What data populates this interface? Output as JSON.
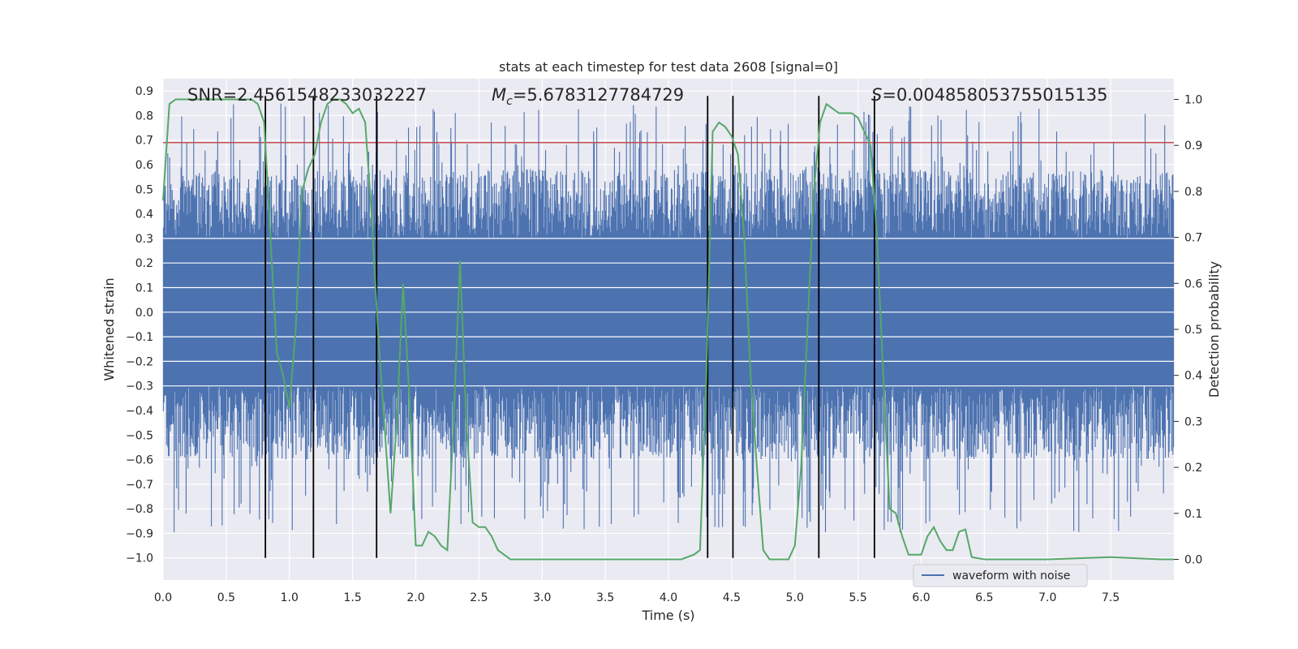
{
  "chart_data": {
    "type": "line",
    "title": "stats at each timestep for test data 2608 [signal=0]",
    "xlabel": "Time (s)",
    "ylabel": "Whitened strain",
    "y2label": "Detection probability",
    "xlim": [
      0.0,
      8.0
    ],
    "ylim": [
      -1.09,
      0.95
    ],
    "y2lim": [
      -0.045,
      1.045
    ],
    "x_ticks": [
      0.0,
      0.5,
      1.0,
      1.5,
      2.0,
      2.5,
      3.0,
      3.5,
      4.0,
      4.5,
      5.0,
      5.5,
      6.0,
      6.5,
      7.0,
      7.5
    ],
    "x_tick_labels": [
      "0.0",
      "0.5",
      "1.0",
      "1.5",
      "2.0",
      "2.5",
      "3.0",
      "3.5",
      "4.0",
      "4.5",
      "5.0",
      "5.5",
      "6.0",
      "6.5",
      "7.0",
      "7.5"
    ],
    "y_ticks": [
      0.9,
      0.8,
      0.7,
      0.6,
      0.5,
      0.4,
      0.3,
      0.2,
      0.1,
      0.0,
      -0.1,
      -0.2,
      -0.3,
      -0.4,
      -0.5,
      -0.6,
      -0.7,
      -0.8,
      -0.9,
      -1.0
    ],
    "y_tick_labels": [
      "0.9",
      "0.8",
      "0.7",
      "0.6",
      "0.5",
      "0.4",
      "0.3",
      "0.2",
      "0.1",
      "0.0",
      "−0.1",
      "−0.2",
      "−0.3",
      "−0.4",
      "−0.5",
      "−0.6",
      "−0.7",
      "−0.8",
      "−0.9",
      "−1.0"
    ],
    "y2_ticks": [
      1.0,
      0.9,
      0.8,
      0.7,
      0.6,
      0.5,
      0.4,
      0.3,
      0.2,
      0.1,
      0.0
    ],
    "y2_tick_labels": [
      "1.0",
      "0.9",
      "0.8",
      "0.7",
      "0.6",
      "0.5",
      "0.4",
      "0.3",
      "0.2",
      "0.1",
      "0.0"
    ],
    "grid": true,
    "legend": {
      "position": "lower-right",
      "entries": [
        "waveform with noise"
      ]
    },
    "annotations": [
      {
        "prefix": "SNR",
        "italic_symbol": "",
        "subscript": "",
        "value": "=2.4561548233032227"
      },
      {
        "prefix": "",
        "italic_symbol": "M",
        "subscript": "c",
        "value": "=5.6783127784729"
      },
      {
        "prefix": "",
        "italic_symbol": "S",
        "subscript": "",
        "value": "=0.004858053755015135"
      }
    ],
    "threshold": {
      "value": 0.69,
      "color": "#c44e52"
    },
    "vertical_markers": [
      0.81,
      1.19,
      1.69,
      4.31,
      4.51,
      5.19,
      5.63
    ],
    "vertical_marker_range": [
      -1.0,
      0.88
    ],
    "waveform": {
      "name": "waveform with noise",
      "color": "#4c72b0",
      "n_samples": 1600,
      "core_amplitude": 0.3,
      "peak_max": 0.85,
      "trough_min": -1.0
    },
    "probability_series": {
      "name": "detection probability",
      "color": "#55a868",
      "x": [
        0.0,
        0.05,
        0.1,
        0.2,
        0.4,
        0.6,
        0.7,
        0.75,
        0.8,
        0.85,
        0.9,
        0.95,
        1.0,
        1.05,
        1.1,
        1.15,
        1.2,
        1.25,
        1.3,
        1.35,
        1.4,
        1.45,
        1.5,
        1.55,
        1.6,
        1.65,
        1.7,
        1.75,
        1.8,
        1.85,
        1.9,
        1.95,
        2.0,
        2.05,
        2.1,
        2.15,
        2.2,
        2.25,
        2.3,
        2.35,
        2.4,
        2.45,
        2.5,
        2.55,
        2.6,
        2.65,
        2.7,
        2.75,
        2.8,
        3.0,
        3.4,
        3.8,
        4.1,
        4.2,
        4.25,
        4.3,
        4.35,
        4.4,
        4.45,
        4.5,
        4.55,
        4.6,
        4.65,
        4.7,
        4.75,
        4.8,
        4.85,
        4.9,
        4.95,
        5.0,
        5.05,
        5.1,
        5.15,
        5.2,
        5.25,
        5.3,
        5.35,
        5.4,
        5.45,
        5.5,
        5.55,
        5.6,
        5.65,
        5.7,
        5.75,
        5.8,
        5.85,
        5.9,
        5.95,
        6.0,
        6.05,
        6.1,
        6.15,
        6.2,
        6.25,
        6.3,
        6.35,
        6.4,
        6.5,
        6.55,
        6.6,
        6.65,
        6.7,
        6.8,
        7.0,
        7.5,
        7.9,
        8.0
      ],
      "y": [
        0.78,
        0.99,
        1.0,
        1.0,
        1.0,
        1.0,
        1.0,
        0.99,
        0.95,
        0.7,
        0.45,
        0.4,
        0.33,
        0.5,
        0.8,
        0.85,
        0.88,
        0.95,
        0.99,
        1.0,
        1.0,
        0.99,
        0.97,
        0.98,
        0.95,
        0.75,
        0.5,
        0.3,
        0.1,
        0.3,
        0.6,
        0.35,
        0.03,
        0.03,
        0.06,
        0.05,
        0.03,
        0.02,
        0.3,
        0.65,
        0.3,
        0.08,
        0.07,
        0.07,
        0.05,
        0.02,
        0.01,
        0.0,
        0.0,
        0.0,
        0.0,
        0.0,
        0.0,
        0.01,
        0.02,
        0.4,
        0.93,
        0.95,
        0.94,
        0.92,
        0.88,
        0.7,
        0.4,
        0.2,
        0.02,
        0.0,
        0.0,
        0.0,
        0.0,
        0.03,
        0.2,
        0.5,
        0.8,
        0.95,
        0.99,
        0.98,
        0.97,
        0.97,
        0.97,
        0.96,
        0.93,
        0.9,
        0.7,
        0.4,
        0.11,
        0.1,
        0.05,
        0.01,
        0.01,
        0.01,
        0.05,
        0.07,
        0.04,
        0.02,
        0.02,
        0.06,
        0.065,
        0.005,
        0.0,
        0.0,
        0.0,
        0.0,
        0.0,
        0.0,
        0.0,
        0.005,
        0.0,
        0.0
      ]
    }
  }
}
